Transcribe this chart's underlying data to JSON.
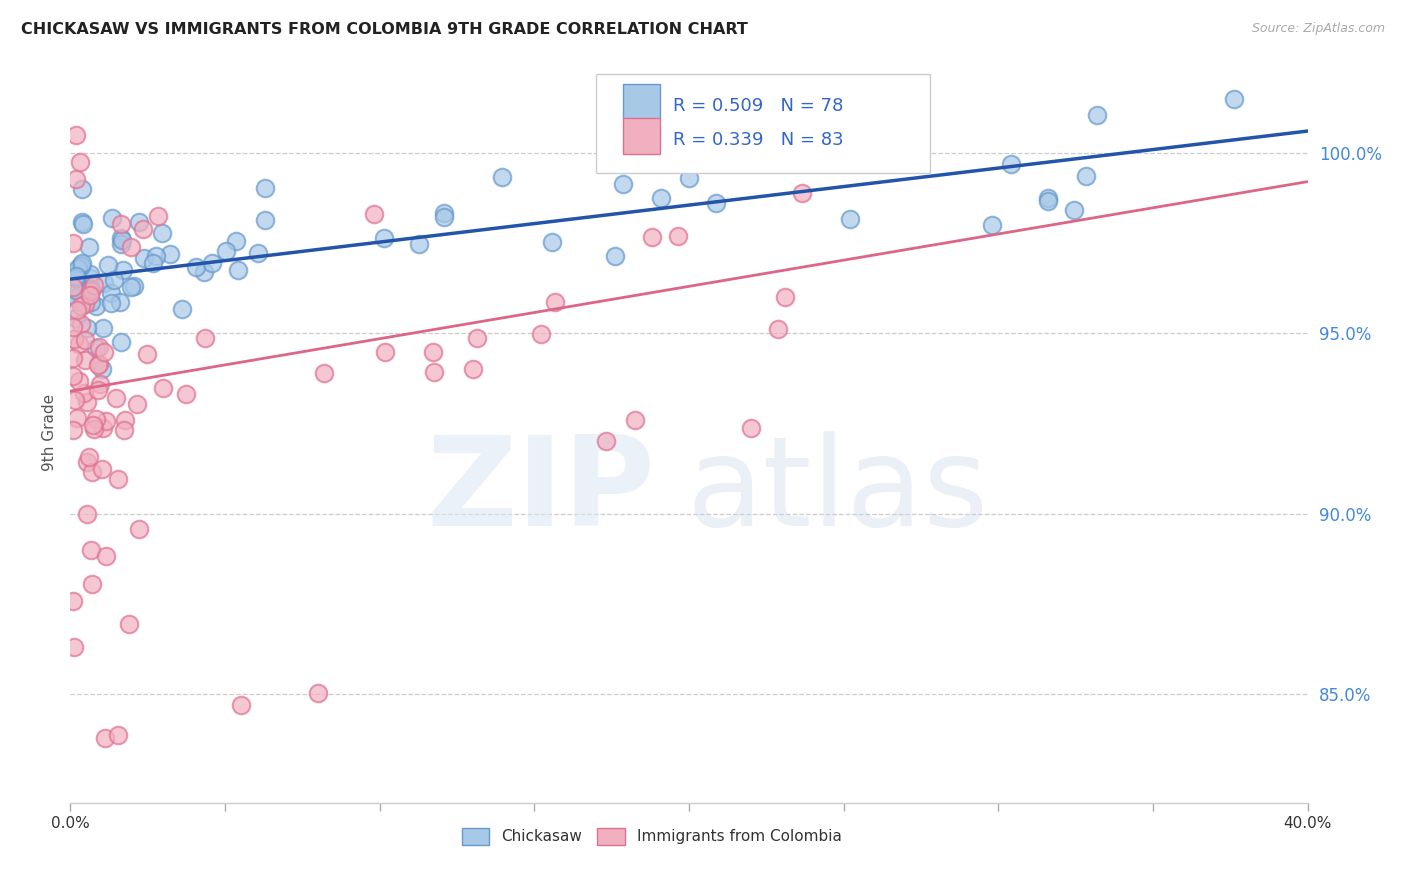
{
  "title": "CHICKASAW VS IMMIGRANTS FROM COLOMBIA 9TH GRADE CORRELATION CHART",
  "source": "Source: ZipAtlas.com",
  "ylabel": "9th Grade",
  "ytick_labels": [
    "85.0%",
    "90.0%",
    "95.0%",
    "100.0%"
  ],
  "ytick_values": [
    85.0,
    90.0,
    95.0,
    100.0
  ],
  "xmin": 0.0,
  "xmax": 40.0,
  "ymin": 82.0,
  "ymax": 102.5,
  "chickasaw_R": 0.509,
  "chickasaw_N": 78,
  "colombia_R": 0.339,
  "colombia_N": 83,
  "chickasaw_color": "#a8c8e8",
  "chickasaw_edge_color": "#6699cc",
  "colombia_color": "#f0b0c0",
  "colombia_edge_color": "#e07090",
  "chickasaw_line_color": "#2255aa",
  "colombia_line_color": "#dd6688",
  "legend_label_1": "Chickasaw",
  "legend_label_2": "Immigrants from Colombia",
  "blue_line_x": [
    0,
    40
  ],
  "blue_line_y": [
    96.5,
    100.6
  ],
  "pink_line_x": [
    0,
    40
  ],
  "pink_line_y": [
    93.4,
    99.2
  ]
}
